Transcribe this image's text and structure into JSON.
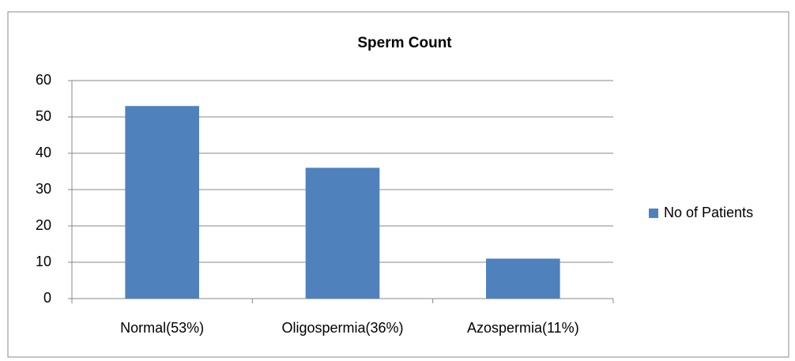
{
  "chart_data": {
    "type": "bar",
    "title": "Sperm Count",
    "categories": [
      "Normal(53%)",
      "Oligospermia(36%)",
      "Azospermia(11%)"
    ],
    "series": [
      {
        "name": "No of Patients",
        "color": "#4f81bd",
        "values": [
          53,
          36,
          11
        ]
      }
    ],
    "ylim": [
      0,
      60
    ],
    "yticks": [
      0,
      10,
      20,
      30,
      40,
      50,
      60
    ],
    "grid": true,
    "legend": "right"
  }
}
